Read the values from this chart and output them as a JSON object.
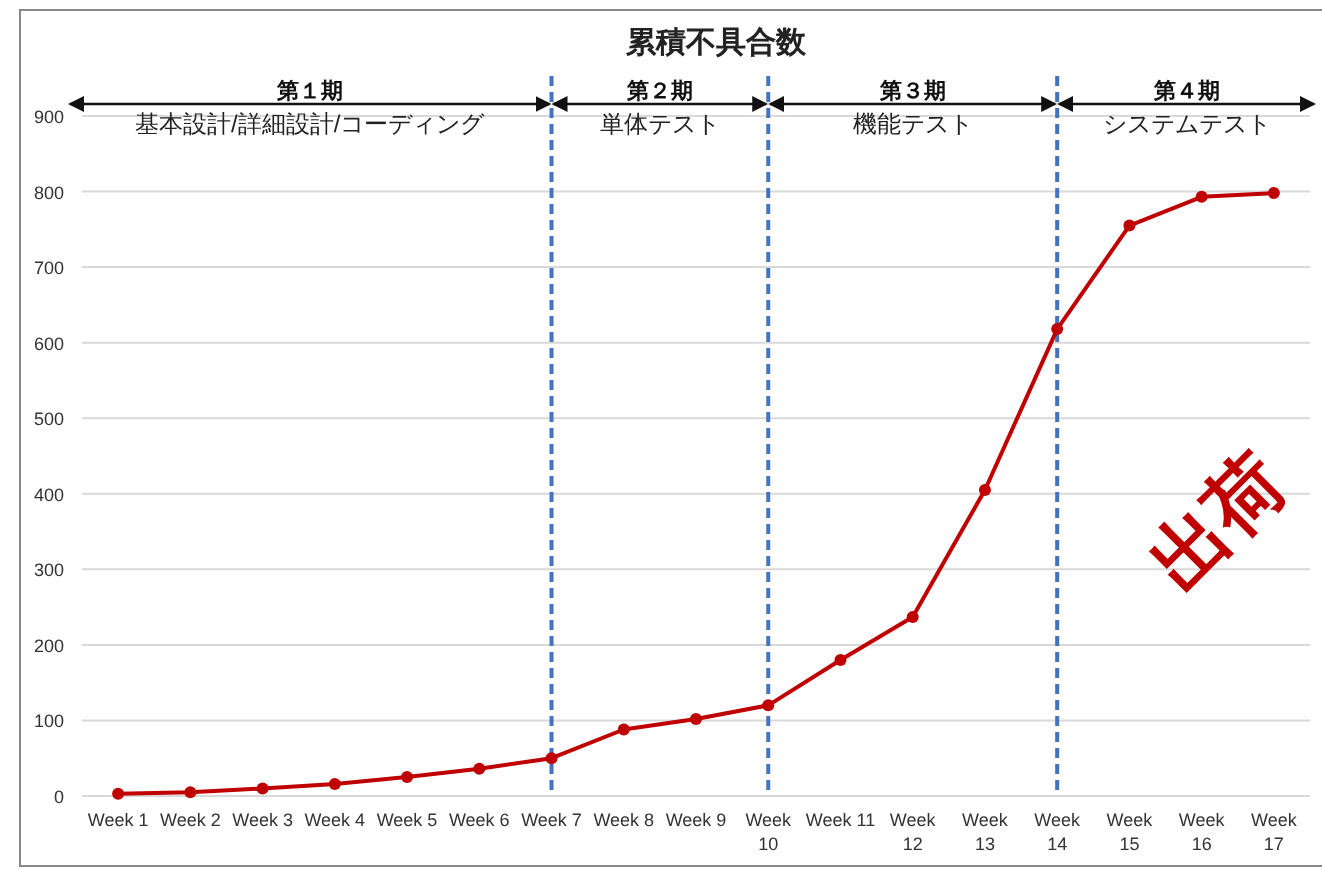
{
  "chart_data": {
    "type": "line",
    "title": "累積不具合数",
    "categories": [
      "Week 1",
      "Week 2",
      "Week 3",
      "Week 4",
      "Week 5",
      "Week 6",
      "Week 7",
      "Week 8",
      "Week 9",
      "Week 10",
      "Week 11",
      "Week 12",
      "Week 13",
      "Week 14",
      "Week 15",
      "Week 16",
      "Week 17"
    ],
    "series": [
      {
        "color": "#c00000",
        "values": [
          3,
          5,
          10,
          16,
          25,
          36,
          50,
          88,
          102,
          120,
          180,
          237,
          405,
          618,
          755,
          793,
          798
        ]
      }
    ],
    "ylim": [
      0,
      900
    ],
    "yticks": [
      0,
      100,
      200,
      300,
      400,
      500,
      600,
      700,
      800,
      900
    ],
    "grid": "y",
    "marker": "circle",
    "line_style": "solid",
    "ref_lines": [
      {
        "axis": "x",
        "value": "Week 7",
        "color": "#4472c4",
        "line_style": "dashed"
      },
      {
        "axis": "x",
        "value": "Week 10",
        "color": "#4472c4",
        "line_style": "dashed"
      },
      {
        "axis": "x",
        "value": "Week 14",
        "color": "#4472c4",
        "line_style": "dashed"
      }
    ],
    "annotations": [
      "第１期",
      "基本設計/詳細設計/コーディング",
      "第２期",
      "単体テスト",
      "第３期",
      "機能テスト",
      "第４期",
      "システムテスト",
      "出荷"
    ]
  }
}
